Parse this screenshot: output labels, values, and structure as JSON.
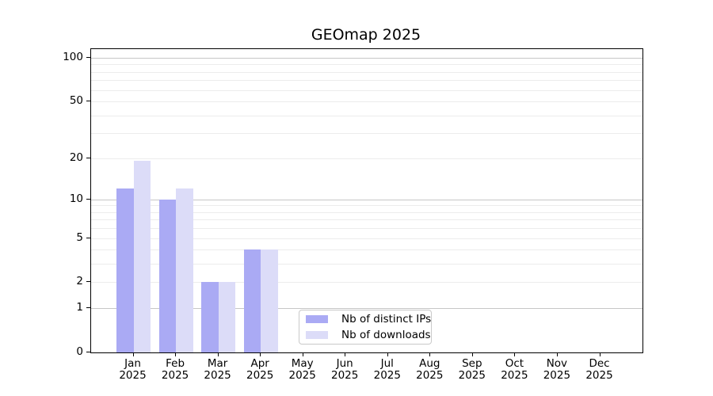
{
  "title": "GEOmap 2025",
  "chart_data": {
    "type": "bar",
    "title": "GEOmap 2025",
    "categories": [
      "Jan",
      "Feb",
      "Mar",
      "Apr",
      "May",
      "Jun",
      "Jul",
      "Aug",
      "Sep",
      "Oct",
      "Nov",
      "Dec"
    ],
    "category_year_line": "2025",
    "series": [
      {
        "name": "Nb of distinct IPs",
        "color": "#aaaaf4",
        "values": [
          12,
          10,
          2,
          4,
          0,
          0,
          0,
          0,
          0,
          0,
          0,
          0
        ]
      },
      {
        "name": "Nb of downloads",
        "color": "#dcdcf8",
        "values": [
          19,
          12,
          2,
          4,
          0,
          0,
          0,
          0,
          0,
          0,
          0,
          0
        ]
      }
    ],
    "xlabel": "",
    "ylabel": "",
    "yscale": "log1p",
    "ylim": [
      0,
      114.5
    ],
    "ytick_values": [
      0,
      1,
      2,
      5,
      10,
      20,
      50,
      100
    ],
    "grid_major_values": [
      1,
      10,
      100
    ],
    "grid_minor_values": [
      2,
      3,
      4,
      5,
      6,
      7,
      8,
      9,
      20,
      30,
      40,
      50,
      60,
      70,
      80,
      90
    ],
    "grid": "on",
    "legend_position": "lower center",
    "colors": {
      "grid_major": "#c6c6c6",
      "grid_minor": "#ececec",
      "axis": "#000000",
      "text": "#000000",
      "background": "#ffffff",
      "legend_border": "#c9c9c9"
    }
  }
}
